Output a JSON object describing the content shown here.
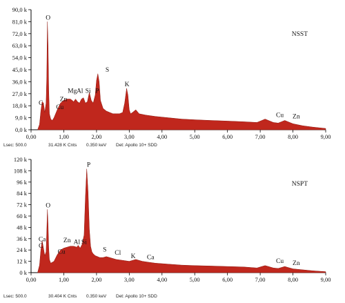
{
  "chart_data": [
    {
      "type": "area",
      "title": "",
      "tag": "NSST",
      "xlabel": "",
      "ylabel": "",
      "xlim": [
        0,
        9
      ],
      "ylim": [
        0,
        90
      ],
      "x_tick_labels": [
        "0,00",
        "1,00",
        "2,00",
        "3,00",
        "4,00",
        "5,00",
        "6,00",
        "7,00",
        "8,00",
        "9,00"
      ],
      "y_tick_labels": [
        "0,0 k",
        "9,0 k",
        "18,0 k",
        "27,0 k",
        "36,0 k",
        "45,0 k",
        "54,0 k",
        "63,0 k",
        "72,0 k",
        "81,0 k",
        "90,0 k"
      ],
      "fill_color": "#c0271d",
      "spectrum": {
        "x": [
          0.2,
          0.26,
          0.3,
          0.34,
          0.38,
          0.42,
          0.46,
          0.48,
          0.5,
          0.52,
          0.54,
          0.56,
          0.6,
          0.65,
          0.7,
          0.8,
          0.9,
          1.0,
          1.1,
          1.2,
          1.26,
          1.3,
          1.36,
          1.42,
          1.48,
          1.54,
          1.6,
          1.66,
          1.72,
          1.78,
          1.84,
          1.9,
          1.96,
          2.0,
          2.04,
          2.08,
          2.12,
          2.2,
          2.3,
          2.4,
          2.5,
          2.6,
          2.7,
          2.8,
          2.86,
          2.92,
          2.96,
          3.0,
          3.04,
          3.1,
          3.2,
          3.3,
          3.5,
          3.8,
          4.2,
          4.6,
          5.0,
          5.5,
          6.0,
          6.5,
          6.9,
          7.05,
          7.15,
          7.25,
          7.4,
          7.55,
          7.65,
          7.75,
          7.85,
          8.0,
          8.3,
          8.6,
          9.0
        ],
        "y": [
          0,
          4,
          14,
          21,
          20,
          13,
          20,
          40,
          81,
          62,
          30,
          12,
          8,
          7,
          9,
          15,
          20,
          22,
          23,
          23,
          22,
          21,
          23,
          21,
          20,
          23,
          24,
          20,
          21,
          28,
          22,
          20,
          26,
          37,
          42,
          36,
          22,
          16,
          14,
          13,
          12,
          12,
          12,
          13,
          20,
          31,
          26,
          15,
          12,
          13,
          15,
          12,
          11,
          10,
          9,
          8,
          7.5,
          7,
          6.5,
          6,
          5.5,
          7,
          8,
          7,
          5.5,
          5,
          6,
          7,
          6,
          4.5,
          3,
          2,
          1
        ]
      },
      "peak_labels": [
        {
          "text": "O",
          "x": 0.52,
          "y": 81
        },
        {
          "text": "C",
          "x": 0.3,
          "y": 17
        },
        {
          "text": "Zn",
          "x": 0.99,
          "y": 20
        },
        {
          "text": "Cu",
          "x": 0.88,
          "y": 14
        },
        {
          "text": "Mg",
          "x": 1.26,
          "y": 26
        },
        {
          "text": "Al",
          "x": 1.49,
          "y": 26
        },
        {
          "text": "Si",
          "x": 1.74,
          "y": 26
        },
        {
          "text": "P",
          "x": 2.02,
          "y": 26
        },
        {
          "text": "S",
          "x": 2.33,
          "y": 42
        },
        {
          "text": "K",
          "x": 2.93,
          "y": 31
        },
        {
          "text": "Cu",
          "x": 7.6,
          "y": 8
        },
        {
          "text": "Zn",
          "x": 8.1,
          "y": 7
        }
      ],
      "meta": {
        "lsec": "Lsec: 500.0",
        "cnts": "31.428 K Cnts",
        "kev": "0.350 keV",
        "det": "Det: Apollo 10+ SDD"
      }
    },
    {
      "type": "area",
      "title": "",
      "tag": "NSPT",
      "xlabel": "",
      "ylabel": "",
      "xlim": [
        0,
        9
      ],
      "ylim": [
        0,
        120
      ],
      "x_tick_labels": [
        "0,00",
        "1,00",
        "2,00",
        "3,00",
        "4,00",
        "5,00",
        "6,00",
        "7,00",
        "8,00",
        "9,00"
      ],
      "y_tick_labels": [
        "0 k",
        "12 k",
        "24 k",
        "36 k",
        "48 k",
        "60 k",
        "72 k",
        "84 k",
        "96 k",
        "108 k",
        "120 k"
      ],
      "fill_color": "#c0271d",
      "spectrum": {
        "x": [
          0.2,
          0.26,
          0.3,
          0.34,
          0.38,
          0.42,
          0.46,
          0.48,
          0.5,
          0.52,
          0.54,
          0.56,
          0.6,
          0.7,
          0.8,
          0.9,
          1.0,
          1.1,
          1.2,
          1.3,
          1.4,
          1.44,
          1.5,
          1.56,
          1.62,
          1.66,
          1.7,
          1.74,
          1.78,
          1.82,
          1.86,
          1.9,
          1.96,
          2.1,
          2.2,
          2.3,
          2.4,
          2.6,
          2.8,
          3.0,
          3.2,
          3.4,
          3.6,
          3.8,
          4.2,
          4.6,
          5.0,
          5.5,
          6.0,
          6.5,
          6.9,
          7.05,
          7.15,
          7.25,
          7.4,
          7.55,
          7.65,
          7.75,
          7.85,
          8.0,
          8.3,
          8.6,
          9.0
        ],
        "y": [
          0,
          8,
          24,
          34,
          26,
          18,
          22,
          44,
          67,
          50,
          26,
          14,
          10,
          12,
          19,
          24,
          26,
          27,
          28,
          28,
          27,
          29,
          26,
          30,
          40,
          80,
          110,
          86,
          46,
          28,
          22,
          20,
          18,
          16,
          16,
          17,
          16,
          14,
          13,
          12,
          14,
          12,
          11,
          10,
          9,
          8,
          7.5,
          7,
          6.5,
          6,
          5,
          6.5,
          7.5,
          6.5,
          5,
          4.5,
          5.5,
          6.5,
          5.5,
          4,
          3,
          2,
          1
        ]
      },
      "peak_labels": [
        {
          "text": "O",
          "x": 0.52,
          "y": 67
        },
        {
          "text": "P",
          "x": 1.76,
          "y": 110
        },
        {
          "text": "C",
          "x": 0.3,
          "y": 24
        },
        {
          "text": "Ca",
          "x": 0.34,
          "y": 31
        },
        {
          "text": "Zn",
          "x": 1.1,
          "y": 30
        },
        {
          "text": "Cu",
          "x": 0.93,
          "y": 18
        },
        {
          "text": "Al",
          "x": 1.4,
          "y": 28
        },
        {
          "text": "Si",
          "x": 1.62,
          "y": 28
        },
        {
          "text": "S",
          "x": 2.25,
          "y": 20
        },
        {
          "text": "Cl",
          "x": 2.65,
          "y": 17
        },
        {
          "text": "K",
          "x": 3.12,
          "y": 13
        },
        {
          "text": "Ca",
          "x": 3.65,
          "y": 12
        },
        {
          "text": "Cu",
          "x": 7.6,
          "y": 8
        },
        {
          "text": "Zn",
          "x": 8.1,
          "y": 6
        }
      ],
      "meta": {
        "lsec": "Lsec: 500.0",
        "cnts": "30.404 K Cnts",
        "kev": "0.350 keV",
        "det": "Det: Apollo 10+ SDD"
      }
    }
  ]
}
